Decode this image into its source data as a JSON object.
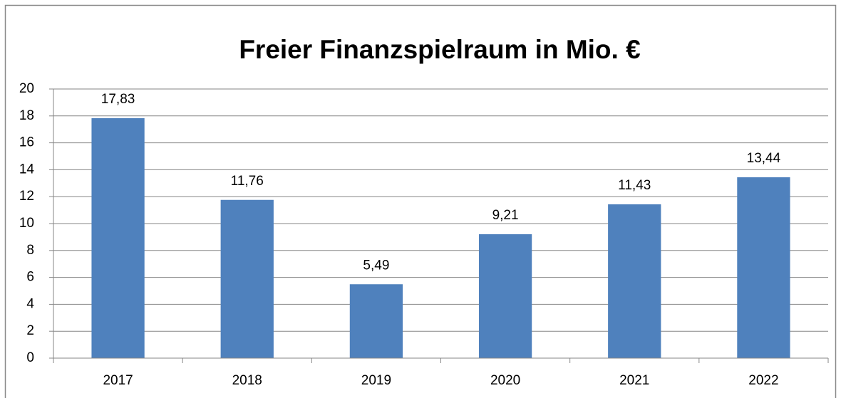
{
  "chart_data": {
    "type": "bar",
    "title": "Freier Finanzspielraum in Mio. €",
    "categories": [
      "2017",
      "2018",
      "2019",
      "2020",
      "2021",
      "2022"
    ],
    "values": [
      17.83,
      11.76,
      5.49,
      9.21,
      11.43,
      13.44
    ],
    "value_labels": [
      "17,83",
      "11,76",
      "5,49",
      "9,21",
      "11,43",
      "13,44"
    ],
    "color": "#4f81bd",
    "ylim": [
      0,
      20
    ],
    "yticks": [
      0,
      2,
      4,
      6,
      8,
      10,
      12,
      14,
      16,
      18,
      20
    ],
    "grid": true
  }
}
